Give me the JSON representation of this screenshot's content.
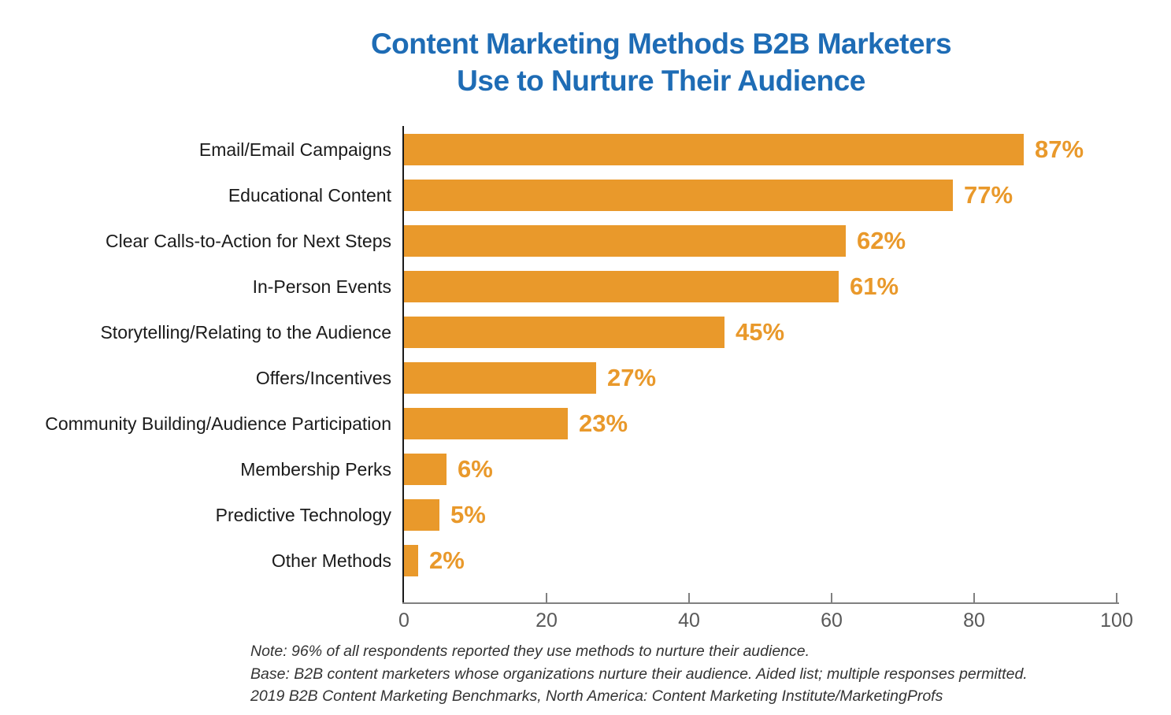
{
  "header": {
    "title_line1": "Content Marketing Methods B2B Marketers",
    "title_line2": "Use to Nurture Their Audience"
  },
  "chart_data": {
    "type": "bar",
    "orientation": "horizontal",
    "title": "Content Marketing Methods B2B Marketers Use to Nurture Their Audience",
    "categories": [
      "Email/Email Campaigns",
      "Educational Content",
      "Clear Calls-to-Action for Next Steps",
      "In-Person Events",
      "Storytelling/Relating to the Audience",
      "Offers/Incentives",
      "Community Building/Audience Participation",
      "Membership Perks",
      "Predictive Technology",
      "Other Methods"
    ],
    "values": [
      87,
      77,
      62,
      61,
      45,
      27,
      23,
      6,
      5,
      2
    ],
    "value_suffix": "%",
    "xlabel": "",
    "ylabel": "",
    "xlim": [
      0,
      100
    ],
    "x_ticks": [
      0,
      20,
      40,
      60,
      80,
      100
    ],
    "grid": false,
    "legend_position": "none",
    "colors": {
      "bar": "#E9992B",
      "value_label": "#E9992B",
      "title": "#1E6CB5",
      "category_label": "#1B1B1B",
      "x_axis_line": "#808080",
      "y_axis_line": "#1A1A1A",
      "tick_mark": "#808080",
      "tick_label": "#595959",
      "footnote": "#333333"
    }
  },
  "footnotes": [
    "Note: 96% of all respondents reported they use methods to nurture their audience.",
    "Base: B2B content marketers whose organizations nurture their audience. Aided list; multiple responses permitted.",
    "2019 B2B Content Marketing Benchmarks, North America: Content Marketing Institute/MarketingProfs"
  ]
}
